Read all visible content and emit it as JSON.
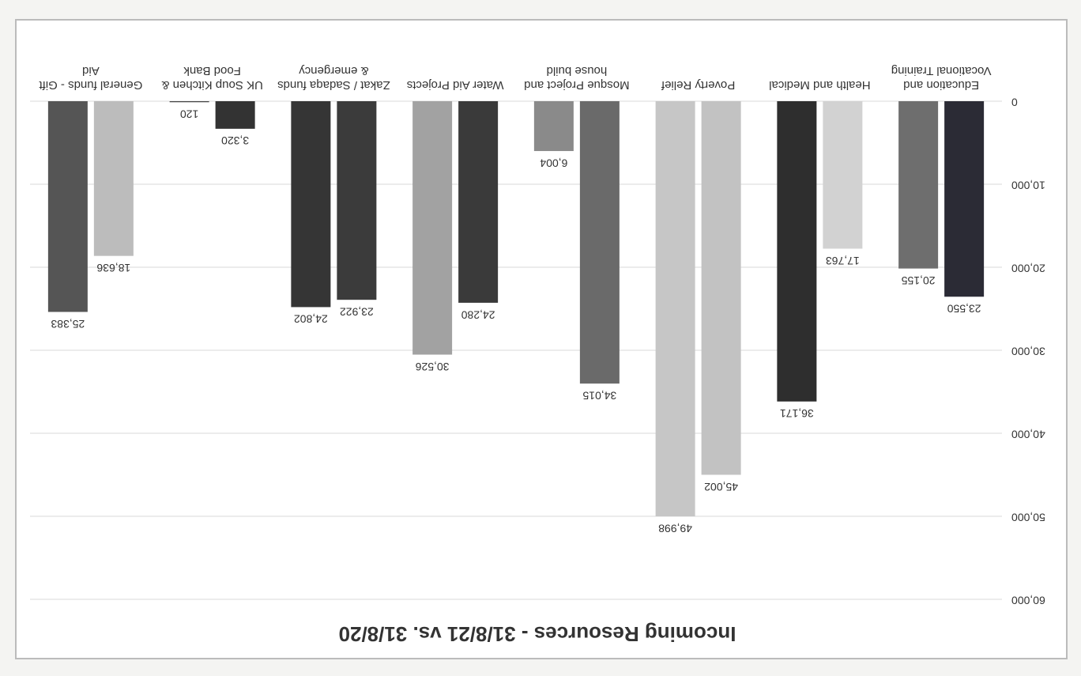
{
  "chart_data": {
    "type": "bar",
    "title": "Incoming Resources - 31/8/21 vs. 31/8/20",
    "categories": [
      "Education and Vocational Training",
      "Health and Medical",
      "Poverty Relief",
      "Mosque Project and house build",
      "Water Aid Projects",
      "Zakat / Sadaqa funds & emergency",
      "UK Soup Kitchen & Food Bank",
      "General funds - Gift Aid"
    ],
    "series": [
      {
        "colors": [
          "#2b2b35",
          "#d2d2d2",
          "#c2c2c2",
          "#6a6a6a",
          "#3a3a3a",
          "#3b3b3b",
          "#333333",
          "#bcbcbc"
        ],
        "values": [
          23550,
          17763,
          45002,
          34015,
          24280,
          23922,
          3320,
          18636
        ],
        "value_labels": [
          "23,550",
          "17,763",
          "45,002",
          "34,015",
          "24,280",
          "23,922",
          "3,320",
          "18,636"
        ]
      },
      {
        "colors": [
          "#6e6e6e",
          "#2e2e2e",
          "#c6c6c6",
          "#8a8a8a",
          "#a2a2a2",
          "#353535",
          "#444444",
          "#555555"
        ],
        "values": [
          20155,
          36171,
          49998,
          6004,
          30526,
          24802,
          120,
          25383
        ],
        "value_labels": [
          "20,155",
          "36,171",
          "49,998",
          "6,004",
          "30,526",
          "24,802",
          "120",
          "25,383"
        ]
      }
    ],
    "ylim": [
      0,
      60000
    ],
    "yticks": [
      0,
      {
        "value": 10000,
        "label": "10,000"
      },
      {
        "value": 20000,
        "label": "20,000"
      },
      {
        "value": 30000,
        "label": "30,000"
      },
      {
        "value": 40000,
        "label": "40,000"
      },
      {
        "value": 50000,
        "label": "50,000"
      },
      {
        "value": 60000,
        "label": "60,000"
      }
    ],
    "grid": true
  }
}
